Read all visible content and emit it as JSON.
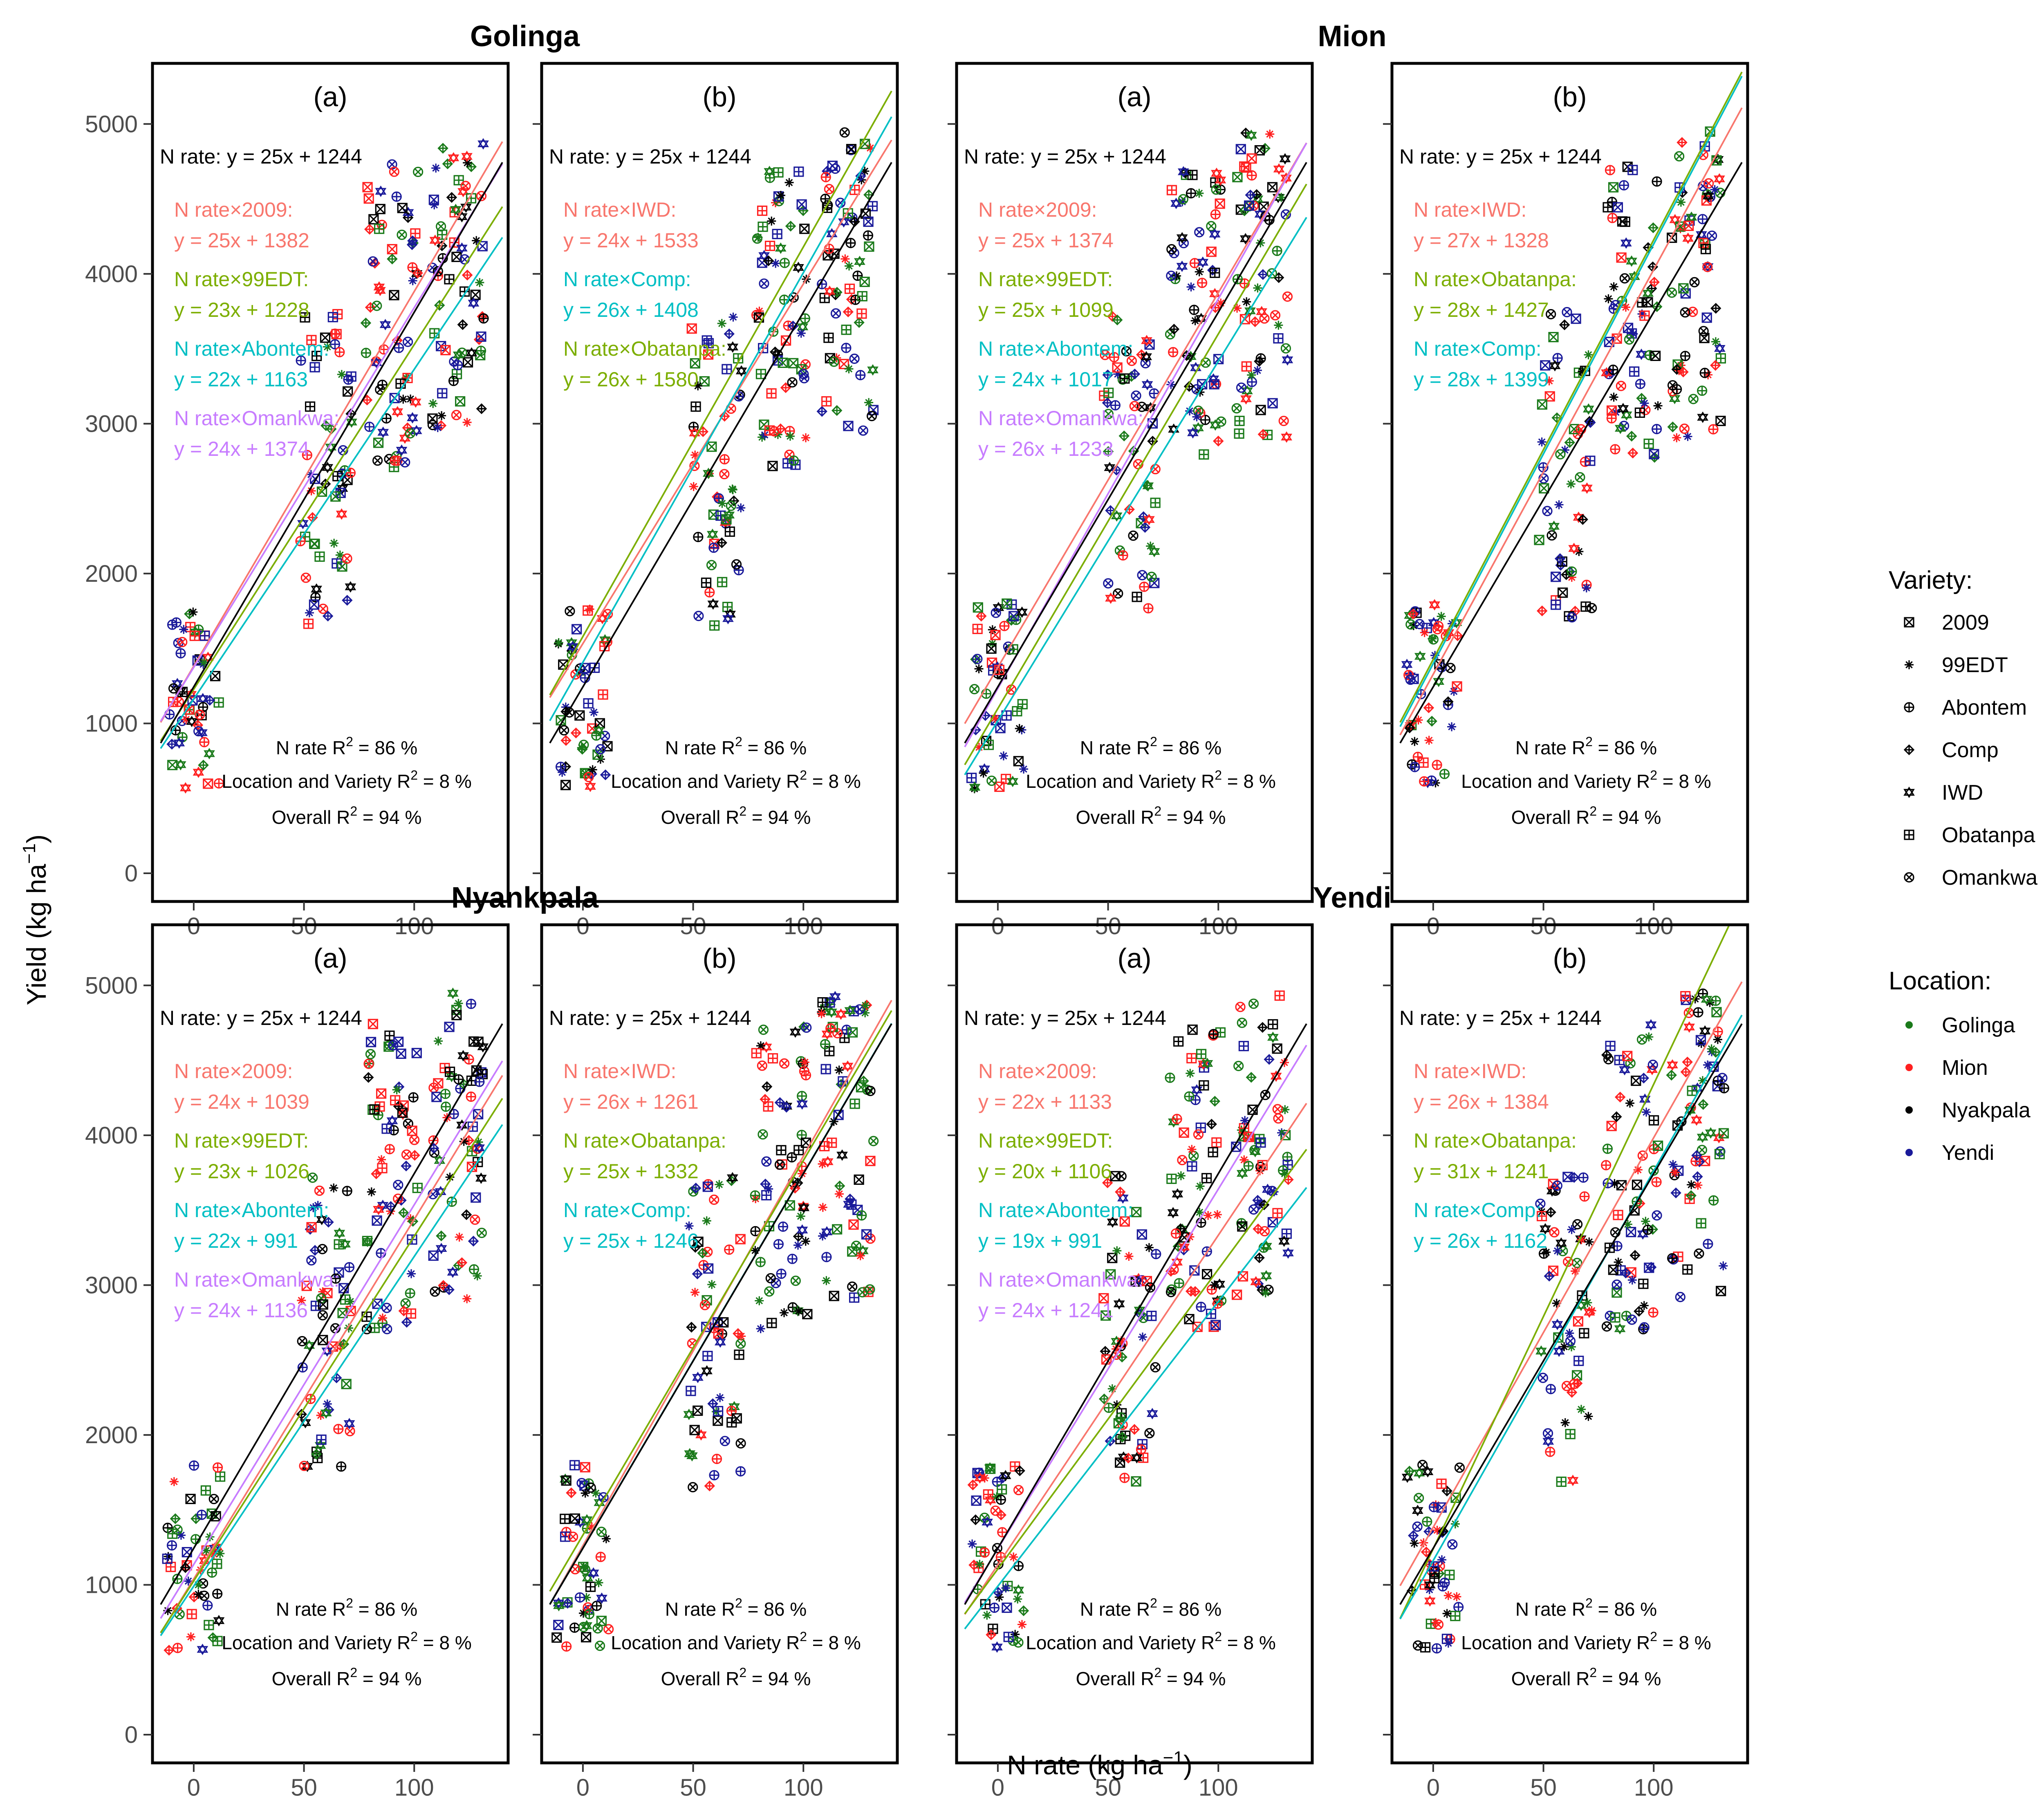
{
  "figure": {
    "xlabel": "N rate (kg ha",
    "xlabel_sup": "−1",
    "xlabel_end": ")",
    "ylabel": "Yield (kg ha",
    "ylabel_sup": "−1",
    "ylabel_end": ")",
    "locations": [
      "Golinga",
      "Mion",
      "Nyankpala",
      "Yendi"
    ],
    "stats": {
      "nrate_prefix": "N rate R",
      "nrate_suffix": " = 86 %",
      "locvar_prefix": "Location and Variety R",
      "locvar_suffix": " = 8 %",
      "overall_prefix": "Overall R",
      "overall_suffix": " = 94 %",
      "sup": "2"
    },
    "nrate_eq": "N rate: y = 25x + 1244"
  },
  "legend": {
    "variety_title": "Variety:",
    "varieties": [
      "2009",
      "99EDT",
      "Abontem",
      "Comp",
      "IWD",
      "Obatanpa",
      "Omankwa"
    ],
    "location_title": "Location:",
    "locations": [
      "Golinga",
      "Mion",
      "Nyakpala",
      "Yendi"
    ]
  },
  "colors": {
    "Golinga": "#1a7a1a",
    "Mion": "#ff2020",
    "Nyakpala": "#000000",
    "Yendi": "#1a1a9a",
    "overall_line": "#000000",
    "2009": "#f8766d",
    "IWD": "#f8766d",
    "99EDT": "#7cae00",
    "Obatanpa": "#7cae00",
    "Abontem": "#00bfc4",
    "Comp": "#00bfc4",
    "Omankwa": "#c77cff"
  },
  "chart_data": [
    {
      "type": "scatter",
      "location": "Golinga",
      "panel": "(a)",
      "xlim": [
        -15,
        140
      ],
      "ylim": [
        -150,
        5350
      ],
      "xticks": [
        0,
        50,
        100
      ],
      "yticks": [
        0,
        1000,
        2000,
        3000,
        4000,
        5000
      ],
      "fits": [
        {
          "name": "N rate×2009:",
          "eq": "y = 25x + 1382",
          "slope": 25,
          "intercept": 1382,
          "color": "#f8766d"
        },
        {
          "name": "N rate×99EDT:",
          "eq": "y = 23x + 1228",
          "slope": 23,
          "intercept": 1228,
          "color": "#7cae00"
        },
        {
          "name": "N rate×Abontem:",
          "eq": "y = 22x + 1163",
          "slope": 22,
          "intercept": 1163,
          "color": "#00bfc4"
        },
        {
          "name": "N rate×Omankwa:",
          "eq": "y = 24x + 1374",
          "slope": 24,
          "intercept": 1374,
          "color": "#c77cff"
        }
      ]
    },
    {
      "type": "scatter",
      "location": "Golinga",
      "panel": "(b)",
      "xlim": [
        -15,
        140
      ],
      "ylim": [
        -150,
        5350
      ],
      "xticks": [
        0,
        50,
        100
      ],
      "yticks": [
        0,
        1000,
        2000,
        3000,
        4000,
        5000
      ],
      "fits": [
        {
          "name": "N rate×IWD:",
          "eq": "y = 24x + 1533",
          "slope": 24,
          "intercept": 1533,
          "color": "#f8766d"
        },
        {
          "name": "N rate×Comp:",
          "eq": "y = 26x + 1408",
          "slope": 26,
          "intercept": 1408,
          "color": "#00bfc4"
        },
        {
          "name": "N rate×Obatanpa:",
          "eq": "y = 26x + 1580",
          "slope": 26,
          "intercept": 1580,
          "color": "#7cae00"
        }
      ]
    },
    {
      "type": "scatter",
      "location": "Mion",
      "panel": "(a)",
      "xlim": [
        -15,
        140
      ],
      "ylim": [
        -150,
        5350
      ],
      "xticks": [
        0,
        50,
        100
      ],
      "yticks": [
        0,
        1000,
        2000,
        3000,
        4000,
        5000
      ],
      "fits": [
        {
          "name": "N rate×2009:",
          "eq": "y = 25x + 1374",
          "slope": 25,
          "intercept": 1374,
          "color": "#f8766d"
        },
        {
          "name": "N rate×99EDT:",
          "eq": "y = 25x + 1099",
          "slope": 25,
          "intercept": 1099,
          "color": "#7cae00"
        },
        {
          "name": "N rate×Abontem:",
          "eq": "y = 24x + 1017",
          "slope": 24,
          "intercept": 1017,
          "color": "#00bfc4"
        },
        {
          "name": "N rate×Omankwa:",
          "eq": "y = 26x + 1233",
          "slope": 26,
          "intercept": 1233,
          "color": "#c77cff"
        }
      ]
    },
    {
      "type": "scatter",
      "location": "Mion",
      "panel": "(b)",
      "xlim": [
        -15,
        140
      ],
      "ylim": [
        -150,
        5350
      ],
      "xticks": [
        0,
        50,
        100
      ],
      "yticks": [
        0,
        1000,
        2000,
        3000,
        4000,
        5000
      ],
      "fits": [
        {
          "name": "N rate×IWD:",
          "eq": "y = 27x + 1328",
          "slope": 27,
          "intercept": 1328,
          "color": "#f8766d"
        },
        {
          "name": "N rate×Obatanpa:",
          "eq": "y = 28x + 1427",
          "slope": 28,
          "intercept": 1427,
          "color": "#7cae00"
        },
        {
          "name": "N rate×Comp:",
          "eq": "y = 28x + 1399",
          "slope": 28,
          "intercept": 1399,
          "color": "#00bfc4"
        }
      ]
    },
    {
      "type": "scatter",
      "location": "Nyankpala",
      "panel": "(a)",
      "xlim": [
        -15,
        140
      ],
      "ylim": [
        -150,
        5350
      ],
      "xticks": [
        0,
        50,
        100
      ],
      "yticks": [
        0,
        1000,
        2000,
        3000,
        4000,
        5000
      ],
      "fits": [
        {
          "name": "N rate×2009:",
          "eq": "y = 24x + 1039",
          "slope": 24,
          "intercept": 1039,
          "color": "#f8766d"
        },
        {
          "name": "N rate×99EDT:",
          "eq": "y = 23x + 1026",
          "slope": 23,
          "intercept": 1026,
          "color": "#7cae00"
        },
        {
          "name": "N rate×Abontem:",
          "eq": "y = 22x + 991",
          "slope": 22,
          "intercept": 991,
          "color": "#00bfc4"
        },
        {
          "name": "N rate×Omankwa:",
          "eq": "y = 24x + 1136",
          "slope": 24,
          "intercept": 1136,
          "color": "#c77cff"
        }
      ]
    },
    {
      "type": "scatter",
      "location": "Nyankpala",
      "panel": "(b)",
      "xlim": [
        -15,
        140
      ],
      "ylim": [
        -150,
        5350
      ],
      "xticks": [
        0,
        50,
        100
      ],
      "yticks": [
        0,
        1000,
        2000,
        3000,
        4000,
        5000
      ],
      "fits": [
        {
          "name": "N rate×IWD:",
          "eq": "y = 26x + 1261",
          "slope": 26,
          "intercept": 1261,
          "color": "#f8766d"
        },
        {
          "name": "N rate×Obatanpa:",
          "eq": "y = 25x + 1332",
          "slope": 25,
          "intercept": 1332,
          "color": "#7cae00"
        },
        {
          "name": "N rate×Comp:",
          "eq": "y = 25x + 1246",
          "slope": 25,
          "intercept": 1246,
          "color": "#00bfc4"
        }
      ]
    },
    {
      "type": "scatter",
      "location": "Yendi",
      "panel": "(a)",
      "xlim": [
        -15,
        140
      ],
      "ylim": [
        -150,
        5350
      ],
      "xticks": [
        0,
        50,
        100
      ],
      "yticks": [
        0,
        1000,
        2000,
        3000,
        4000,
        5000
      ],
      "fits": [
        {
          "name": "N rate×2009:",
          "eq": "y = 22x + 1133",
          "slope": 22,
          "intercept": 1133,
          "color": "#f8766d"
        },
        {
          "name": "N rate×99EDT:",
          "eq": "y = 20x + 1106",
          "slope": 20,
          "intercept": 1106,
          "color": "#7cae00"
        },
        {
          "name": "N rate×Abontem:",
          "eq": "y = 19x + 991",
          "slope": 19,
          "intercept": 991,
          "color": "#00bfc4"
        },
        {
          "name": "N rate×Omankwa:",
          "eq": "y = 24x + 1241",
          "slope": 24,
          "intercept": 1241,
          "color": "#c77cff"
        }
      ]
    },
    {
      "type": "scatter",
      "location": "Yendi",
      "panel": "(b)",
      "xlim": [
        -15,
        140
      ],
      "ylim": [
        -150,
        5350
      ],
      "xticks": [
        0,
        50,
        100
      ],
      "yticks": [
        0,
        1000,
        2000,
        3000,
        4000,
        5000
      ],
      "fits": [
        {
          "name": "N rate×IWD:",
          "eq": "y = 26x + 1384",
          "slope": 26,
          "intercept": 1384,
          "color": "#f8766d"
        },
        {
          "name": "N rate×Obatanpa:",
          "eq": "y = 31x + 1241",
          "slope": 31,
          "intercept": 1241,
          "color": "#7cae00"
        },
        {
          "name": "N rate×Comp:",
          "eq": "y = 26x + 1162",
          "slope": 26,
          "intercept": 1162,
          "color": "#00bfc4"
        }
      ]
    }
  ]
}
